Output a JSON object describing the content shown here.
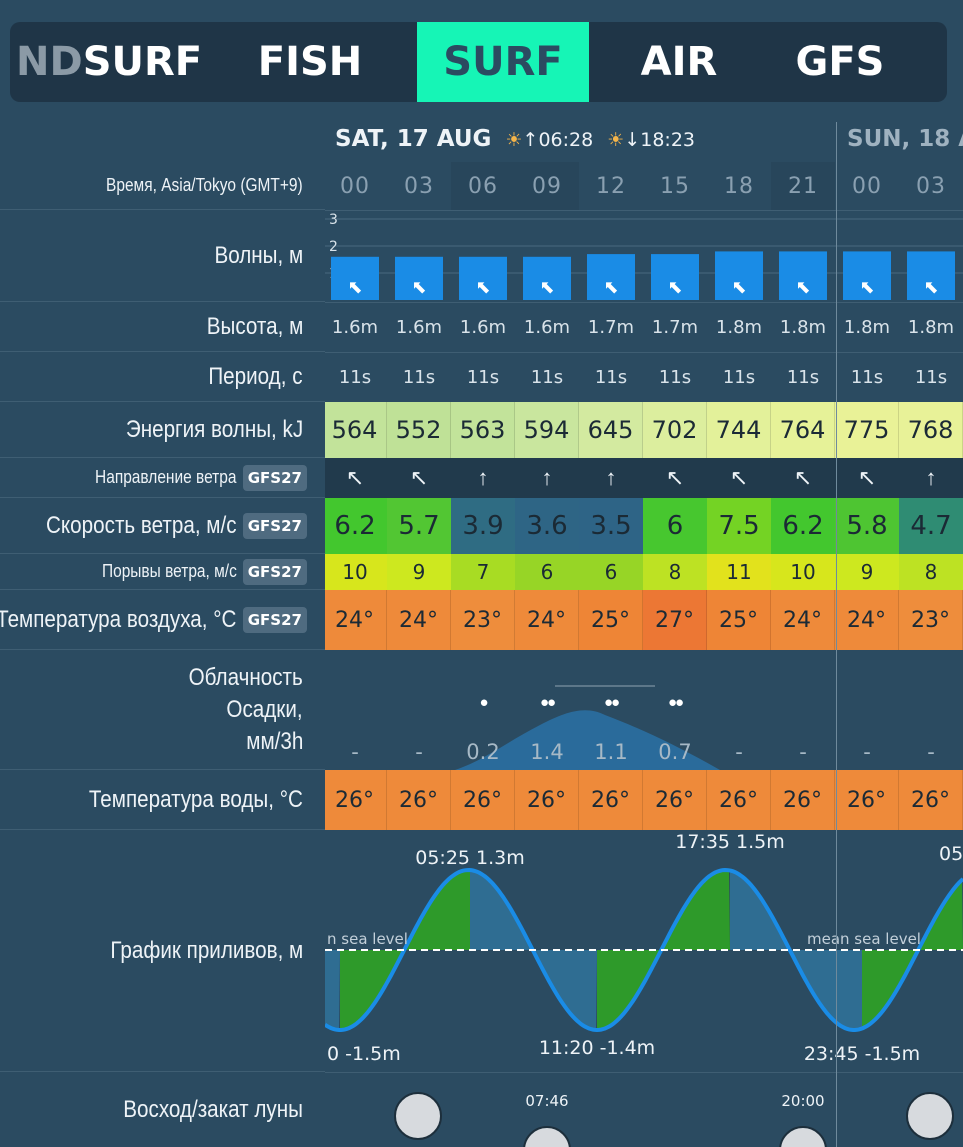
{
  "tabs": [
    {
      "fade": "ND",
      "label": "SURF",
      "active": false,
      "id": "windsurf"
    },
    {
      "label": "FISH",
      "active": false,
      "id": "fish"
    },
    {
      "label": "SURF",
      "active": true,
      "id": "surf"
    },
    {
      "label": "AIR",
      "active": false,
      "id": "air"
    },
    {
      "label": "GFS",
      "active": false,
      "id": "gfs"
    }
  ],
  "labels": {
    "time": "Время, Asia/Tokyo (GMT+9)",
    "waves": "Волны, м",
    "height": "Высота, м",
    "period": "Период, с",
    "energy": "Энергия волны, kJ",
    "wind_dir": "Направление ветра",
    "wind_speed": "Скорость ветра, м/с",
    "gusts": "Порывы ветра, м/с",
    "air_temp": "Температура воздуха, °C",
    "clouds": "Облачность",
    "precip_1": "Осадки,",
    "precip_2": "мм/3h",
    "water_temp": "Температура воды, °C",
    "tides": "График приливов, м",
    "moon": "Восход/закат луны",
    "model_badge": "GFS27"
  },
  "days": [
    {
      "title": "SAT, 17 AUG",
      "sunrise": "06:28",
      "sunset": "18:23",
      "sunrise_icon": "sunrise-icon",
      "sunset_icon": "sunset-icon"
    },
    {
      "title": "SUN, 18 A"
    }
  ],
  "hours": [
    "00",
    "03",
    "06",
    "09",
    "12",
    "15",
    "18",
    "21",
    "00",
    "03"
  ],
  "wave_axis": [
    "3",
    "2",
    "1"
  ],
  "waves_m": [
    1.6,
    1.6,
    1.6,
    1.6,
    1.7,
    1.7,
    1.8,
    1.8,
    1.8,
    1.8
  ],
  "wave_dir_icon": "arrow-left-up-icon",
  "height": [
    "1.6m",
    "1.6m",
    "1.6m",
    "1.6m",
    "1.7m",
    "1.7m",
    "1.8m",
    "1.8m",
    "1.8m",
    "1.8m"
  ],
  "period": [
    "11s",
    "11s",
    "11s",
    "11s",
    "11s",
    "11s",
    "11s",
    "11s",
    "11s",
    "11s"
  ],
  "energy": [
    "564",
    "552",
    "563",
    "594",
    "645",
    "702",
    "744",
    "764",
    "775",
    "768"
  ],
  "wind_dir": [
    "↖",
    "↖",
    "↑",
    "↑",
    "↑",
    "↖",
    "↖",
    "↖",
    "↖",
    "↑"
  ],
  "wind_speed": [
    "6.2",
    "5.7",
    "3.9",
    "3.6",
    "3.5",
    "6",
    "7.5",
    "6.2",
    "5.8",
    "4.7"
  ],
  "gusts": [
    "10",
    "9",
    "7",
    "6",
    "6",
    "8",
    "11",
    "10",
    "9",
    "8"
  ],
  "air_temp": [
    "24°",
    "24°",
    "23°",
    "24°",
    "25°",
    "27°",
    "25°",
    "24°",
    "24°",
    "23°"
  ],
  "precip": [
    "-",
    "-",
    "0.2",
    "1.4",
    "1.1",
    "0.7",
    "-",
    "-",
    "-",
    "-"
  ],
  "precip_drops": [
    0,
    0,
    1,
    2,
    2,
    2,
    0,
    0,
    0,
    0
  ],
  "water_temp": [
    "26°",
    "26°",
    "26°",
    "26°",
    "26°",
    "26°",
    "26°",
    "26°",
    "26°",
    "26°"
  ],
  "tide": {
    "mean_label": "mean sea level",
    "mean_label_clipped": "n sea level",
    "labels": [
      "05:25 1.3m",
      "11:20 -1.4m",
      "17:35 1.5m",
      "23:45 -1.5m",
      "0 -1.5m",
      "05"
    ]
  },
  "moon": {
    "times": [
      "07:46",
      "20:00"
    ]
  },
  "colors": {
    "active_tab": "#16f5b6",
    "wave_bar": "#1a8ce6",
    "tide_line": "#1a8ce6",
    "tide_fill_green": "#2e9a2a",
    "tide_fill_blue": "#2f6d92",
    "energy": [
      "#c2e39a",
      "#bfe197",
      "#c2e39a",
      "#c9e69e",
      "#d3eaa0",
      "#dcee9e",
      "#e3f19a",
      "#e6f298",
      "#e9f297",
      "#e8f298"
    ],
    "wind_speed": [
      "#43c72e",
      "#52c633",
      "#2f6c83",
      "#2e6585",
      "#2e6486",
      "#47c72f",
      "#74d324",
      "#43c72e",
      "#4ec532",
      "#2f8c73"
    ],
    "gusts": [
      "#d7e61c",
      "#cde81f",
      "#a8dc23",
      "#97d526",
      "#97d526",
      "#bde223",
      "#e2e21c",
      "#d7e61c",
      "#cde81f",
      "#bde223"
    ],
    "air_temp": [
      "#ee8a3a",
      "#ee8a3a",
      "#ee8d3c",
      "#ee8a3a",
      "#ee8536",
      "#ec7734",
      "#ee8536",
      "#ee8a3a",
      "#ee8a3a",
      "#ee8d3c"
    ],
    "water_temp": "#ee8a3a"
  }
}
